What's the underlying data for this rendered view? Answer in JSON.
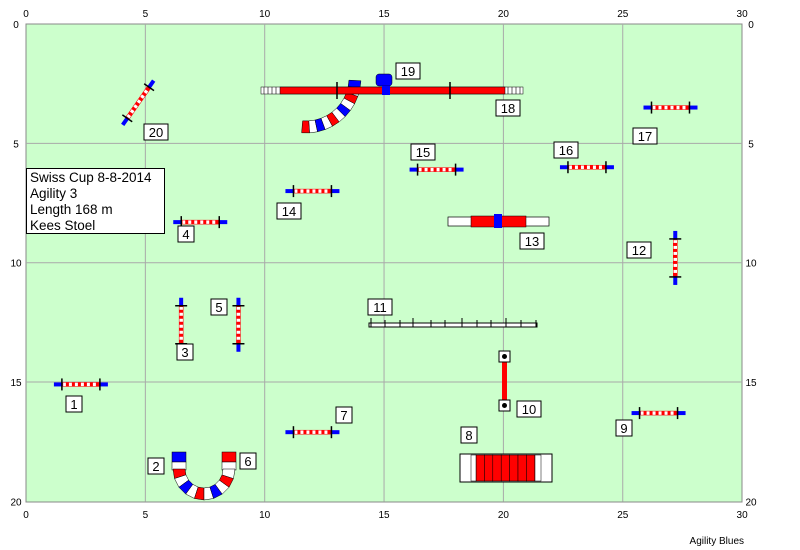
{
  "course": {
    "field": {
      "width": 30,
      "height": 20
    },
    "grid_step": 5,
    "x_ticks": [
      0,
      5,
      10,
      15,
      20,
      25,
      30
    ],
    "y_ticks": [
      0,
      5,
      10,
      15,
      20
    ],
    "info": {
      "event": "Swiss Cup 8-8-2014",
      "class": "Agility 3",
      "length": "Length 168 m",
      "judge": "Kees Stoel"
    },
    "footer": "Agility Blues",
    "colors": {
      "field": "#ccffcc",
      "grid": "#a9a9a9",
      "red": "#ff0000",
      "blue": "#0000ff",
      "white": "#ffffff",
      "black": "#000000"
    },
    "obstacles": [
      {
        "num": "1",
        "type": "jump",
        "x": 2.3,
        "y": 15.1,
        "angle": 0
      },
      {
        "num": "2",
        "type": "tunnel-curve"
      },
      {
        "num": "3",
        "type": "jump",
        "x": 6.5,
        "y": 12.6,
        "angle": 90
      },
      {
        "num": "4",
        "type": "jump",
        "x": 7.3,
        "y": 8.3,
        "angle": 0
      },
      {
        "num": "5",
        "type": "jump",
        "x": 8.9,
        "y": 12.6,
        "angle": 90
      },
      {
        "num": "6",
        "type": "tunnel-curve"
      },
      {
        "num": "7",
        "type": "jump",
        "x": 12.0,
        "y": 17.1,
        "angle": 0
      },
      {
        "num": "8",
        "type": "tunnel-straight"
      },
      {
        "num": "9",
        "type": "jump",
        "x": 26.5,
        "y": 16.3,
        "angle": 0
      },
      {
        "num": "10",
        "type": "tire"
      },
      {
        "num": "11",
        "type": "dogwalk"
      },
      {
        "num": "12",
        "type": "jump",
        "x": 27.2,
        "y": 9.8,
        "angle": 90
      },
      {
        "num": "13",
        "type": "weave-table"
      },
      {
        "num": "14",
        "type": "jump",
        "x": 12.0,
        "y": 7.0,
        "angle": 0
      },
      {
        "num": "15",
        "type": "jump",
        "x": 17.2,
        "y": 6.1,
        "angle": 0
      },
      {
        "num": "16",
        "type": "jump",
        "x": 23.5,
        "y": 6.0,
        "angle": 0
      },
      {
        "num": "17",
        "type": "jump",
        "x": 27.0,
        "y": 3.5,
        "angle": 0
      },
      {
        "num": "18",
        "type": "seesaw"
      },
      {
        "num": "19",
        "type": "tunnel-curve"
      },
      {
        "num": "20",
        "type": "jump",
        "x": 4.7,
        "y": 3.3,
        "angle": -55
      }
    ]
  }
}
